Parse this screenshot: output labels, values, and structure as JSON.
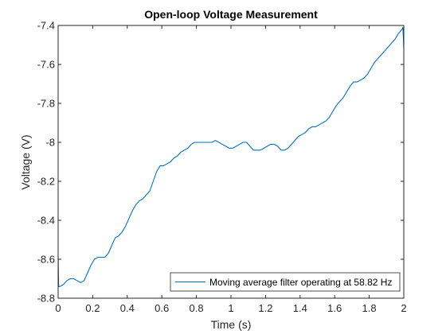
{
  "chart_data": {
    "type": "line",
    "title": "Open-loop Voltage Measurement",
    "xlabel": "Time (s)",
    "ylabel": "Voltage (V)",
    "xlim": [
      0,
      2
    ],
    "ylim": [
      -8.8,
      -7.4
    ],
    "xticks": [
      0,
      0.2,
      0.4,
      0.6,
      0.8,
      1,
      1.2,
      1.4,
      1.6,
      1.8,
      2
    ],
    "xtick_labels": [
      "0",
      "0.2",
      "0.4",
      "0.6",
      "0.8",
      "1",
      "1.2",
      "1.4",
      "1.6",
      "1.8",
      "2"
    ],
    "yticks": [
      -8.8,
      -8.6,
      -8.4,
      -8.2,
      -8,
      -7.8,
      -7.6,
      -7.4
    ],
    "ytick_labels": [
      "-8.8",
      "-8.6",
      "-8.4",
      "-8.2",
      "-8",
      "-7.8",
      "-7.6",
      "-7.4"
    ],
    "grid": false,
    "box": true,
    "legend_position": "bottom-right",
    "series": [
      {
        "name": "Moving average filter operating at 58.82 Hz",
        "color": "#0072BD",
        "x": [
          0,
          0.003,
          0.01,
          0.03,
          0.05,
          0.07,
          0.09,
          0.11,
          0.13,
          0.15,
          0.17,
          0.19,
          0.21,
          0.23,
          0.25,
          0.27,
          0.29,
          0.31,
          0.33,
          0.35,
          0.37,
          0.39,
          0.41,
          0.43,
          0.45,
          0.47,
          0.49,
          0.51,
          0.53,
          0.55,
          0.57,
          0.59,
          0.61,
          0.63,
          0.65,
          0.67,
          0.69,
          0.71,
          0.73,
          0.75,
          0.77,
          0.79,
          0.81,
          0.83,
          0.85,
          0.87,
          0.89,
          0.91,
          0.93,
          0.95,
          0.97,
          0.99,
          1.01,
          1.03,
          1.05,
          1.07,
          1.09,
          1.11,
          1.13,
          1.15,
          1.17,
          1.19,
          1.21,
          1.23,
          1.25,
          1.27,
          1.29,
          1.31,
          1.33,
          1.35,
          1.37,
          1.39,
          1.41,
          1.43,
          1.45,
          1.47,
          1.49,
          1.51,
          1.53,
          1.55,
          1.57,
          1.59,
          1.61,
          1.63,
          1.65,
          1.67,
          1.69,
          1.71,
          1.73,
          1.75,
          1.77,
          1.79,
          1.81,
          1.83,
          1.85,
          1.87,
          1.89,
          1.91,
          1.93,
          1.95,
          1.97,
          1.99,
          1.995,
          2
        ],
        "y": [
          -8.58,
          -8.74,
          -8.74,
          -8.73,
          -8.71,
          -8.7,
          -8.7,
          -8.71,
          -8.72,
          -8.71,
          -8.67,
          -8.63,
          -8.6,
          -8.59,
          -8.59,
          -8.59,
          -8.57,
          -8.53,
          -8.49,
          -8.48,
          -8.46,
          -8.43,
          -8.39,
          -8.35,
          -8.32,
          -8.3,
          -8.29,
          -8.27,
          -8.25,
          -8.2,
          -8.15,
          -8.12,
          -8.12,
          -8.11,
          -8.1,
          -8.08,
          -8.07,
          -8.05,
          -8.04,
          -8.03,
          -8.01,
          -8.0,
          -8.0,
          -8.0,
          -8.0,
          -8.0,
          -8.0,
          -7.99,
          -8.0,
          -8.01,
          -8.02,
          -8.03,
          -8.03,
          -8.02,
          -8.01,
          -8.0,
          -8.0,
          -8.02,
          -8.04,
          -8.04,
          -8.04,
          -8.03,
          -8.02,
          -8.01,
          -8.01,
          -8.02,
          -8.04,
          -8.04,
          -8.03,
          -8.01,
          -7.99,
          -7.97,
          -7.96,
          -7.95,
          -7.93,
          -7.92,
          -7.92,
          -7.91,
          -7.9,
          -7.89,
          -7.87,
          -7.84,
          -7.81,
          -7.79,
          -7.77,
          -7.74,
          -7.71,
          -7.69,
          -7.69,
          -7.68,
          -7.67,
          -7.65,
          -7.62,
          -7.59,
          -7.57,
          -7.55,
          -7.53,
          -7.51,
          -7.49,
          -7.47,
          -7.44,
          -7.42,
          -7.41,
          -7.52
        ]
      }
    ]
  }
}
